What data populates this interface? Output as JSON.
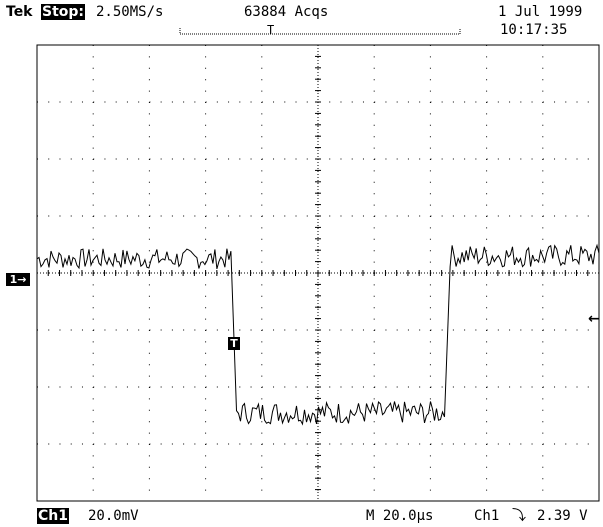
{
  "header": {
    "brand": "Tek",
    "run_state": "Stop:",
    "sample_rate": "2.50MS/s",
    "acquisitions": "63884 Acqs",
    "date": "1 Jul 1999",
    "time": "10:17:35"
  },
  "markers": {
    "channel_ground": "1→",
    "trigger": "T",
    "record_trigger": "T",
    "trigger_level": "←"
  },
  "footer": {
    "channel": "Ch1",
    "volts_per_div": "20.0mV",
    "timebase": "M 20.0µs",
    "trigger_source": "Ch1",
    "trigger_slope": "⤵",
    "trigger_level": "2.39 V"
  },
  "grid": {
    "horizontal_divisions": 10,
    "vertical_divisions": 8
  },
  "waveform": {
    "segments": [
      {
        "from_div": 0.0,
        "to_div": 3.45,
        "level_div": 0.25,
        "noise_div": 0.18
      },
      {
        "from_div": 3.55,
        "to_div": 7.25,
        "level_div": -2.45,
        "noise_div": 0.2
      },
      {
        "from_div": 7.35,
        "to_div": 10.0,
        "level_div": 0.3,
        "noise_div": 0.2
      }
    ]
  }
}
